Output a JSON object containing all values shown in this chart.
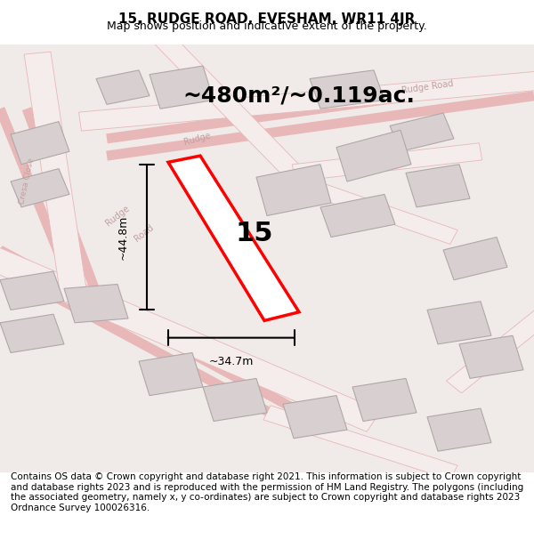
{
  "title": "15, RUDGE ROAD, EVESHAM, WR11 4JR",
  "subtitle": "Map shows position and indicative extent of the property.",
  "area_label": "~480m²/~0.119ac.",
  "plot_number": "15",
  "width_label": "~34.7m",
  "height_label": "~44.8m",
  "background_color": "#f5f0f0",
  "map_bg": "#f0ebe8",
  "road_color": "#e8b8b8",
  "building_color": "#d8d0d0",
  "building_edge": "#b0a8a8",
  "plot_color": "#ff0000",
  "plot_fill": "#ffffff",
  "footer_text": "Contains OS data © Crown copyright and database right 2021. This information is subject to Crown copyright and database rights 2023 and is reproduced with the permission of HM Land Registry. The polygons (including the associated geometry, namely x, y co-ordinates) are subject to Crown copyright and database rights 2023 Ordnance Survey 100026316.",
  "title_fontsize": 11,
  "subtitle_fontsize": 9,
  "area_fontsize": 18,
  "plot_num_fontsize": 22,
  "footer_fontsize": 7.5
}
